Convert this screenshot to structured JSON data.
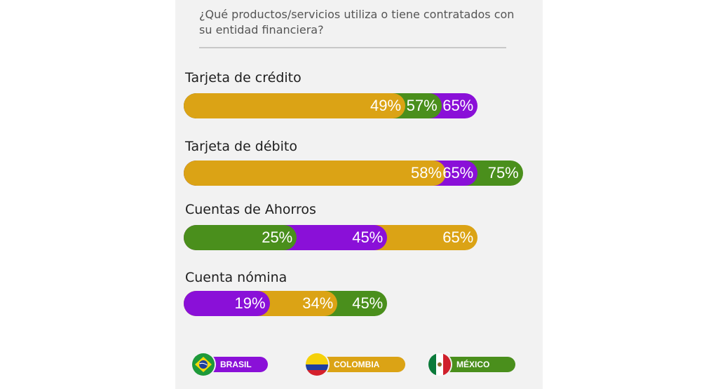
{
  "question": "¿Qué productos/servicios utiliza o tiene contratados con su entidad financiera?",
  "colors": {
    "brasil": "#8a10d8",
    "colombia": "#dba315",
    "mexico": "#4a8f1c"
  },
  "legend": [
    {
      "key": "brasil",
      "label": "BRASIL",
      "flag_icon": "brazil-flag-icon"
    },
    {
      "key": "colombia",
      "label": "COLOMBIA",
      "flag_icon": "colombia-flag-icon"
    },
    {
      "key": "mexico",
      "label": "MÉXICO",
      "flag_icon": "mexico-flag-icon"
    }
  ],
  "chart_data": {
    "type": "bar",
    "orientation": "horizontal-overlapping",
    "categories": [
      "Tarjeta de crédito",
      "Tarjeta de débito",
      "Cuentas de Ahorros",
      "Cuenta nómina"
    ],
    "series": [
      {
        "name": "BRASIL",
        "key": "brasil",
        "values": [
          65,
          65,
          45,
          19
        ],
        "labels": [
          "65%",
          "65%",
          "45%",
          "19%"
        ]
      },
      {
        "name": "COLOMBIA",
        "key": "colombia",
        "values": [
          49,
          58,
          65,
          34
        ],
        "labels": [
          "49%",
          "58%",
          "65%",
          "34%"
        ]
      },
      {
        "name": "MÉXICO",
        "key": "mexico",
        "values": [
          57,
          75,
          25,
          45
        ],
        "labels": [
          "57%",
          "75%",
          "25%",
          "45%"
        ]
      }
    ],
    "xlim": [
      0,
      100
    ],
    "legend_position": "bottom"
  }
}
